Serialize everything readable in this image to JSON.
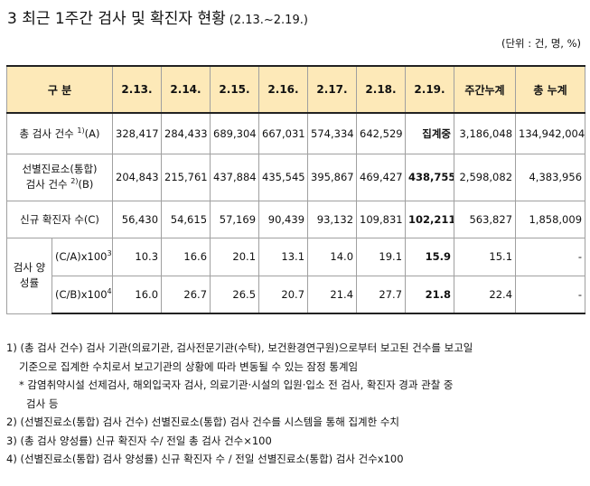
{
  "title": {
    "main": "3 최근 1주간 검사 및 확진자 현황",
    "date": "(2.13.~2.19.)"
  },
  "unit": "(단위 : 건, 명, %)",
  "table": {
    "headers": [
      "구 분",
      "2.13.",
      "2.14.",
      "2.15.",
      "2.16.",
      "2.17.",
      "2.18.",
      "2.19.",
      "주간누계",
      "총 누계"
    ],
    "row_total": {
      "label": "총 검사 건수",
      "sup": "1)",
      "suffix": "(A)",
      "values": [
        "328,417",
        "284,433",
        "689,304",
        "667,031",
        "574,334",
        "642,529",
        "집계중",
        "3,186,048",
        "134,942,004"
      ]
    },
    "row_screening": {
      "label_line1": "선별진료소(통합)",
      "label_line2": "검사 건수",
      "sup": "2)",
      "suffix": "(B)",
      "values": [
        "204,843",
        "215,761",
        "437,884",
        "435,545",
        "395,867",
        "469,427",
        "438,755",
        "2,598,082",
        "4,383,956"
      ]
    },
    "row_new": {
      "label": "신규 확진자 수(C)",
      "values": [
        "56,430",
        "54,615",
        "57,169",
        "90,439",
        "93,132",
        "109,831",
        "102,211",
        "563,827",
        "1,858,009"
      ]
    },
    "positivity": {
      "label_line1": "검사 양",
      "label_line2": "성률",
      "row_ca": {
        "label": "(C/A)x100",
        "sup": "3)",
        "values": [
          "10.3",
          "16.6",
          "20.1",
          "13.1",
          "14.0",
          "19.1",
          "15.9",
          "15.1",
          "-"
        ]
      },
      "row_cb": {
        "label": "(C/B)x100",
        "sup": "4)",
        "values": [
          "16.0",
          "26.7",
          "26.5",
          "20.7",
          "21.4",
          "27.7",
          "21.8",
          "22.4",
          "-"
        ]
      }
    }
  },
  "notes": [
    "1) (총 검사 건수) 검사 기관(의료기관, 검사전문기관(수탁), 보건환경연구원)으로부터 보고된 건수를 보고일",
    "기준으로 집계한 수치로서 보고기관의 상황에 따라 변동될 수 있는 잠정 통계임",
    "* 감염취약시설 선제검사, 해외입국자 검사, 의료기관·시설의 입원·입소 전 검사, 확진자 경과 관찰 중",
    "검사 등",
    "2) (선별진료소(통합) 검사 건수) 선별진료소(통합) 검사 건수를 시스템을 통해 집계한 수치",
    "3) (총 검사 양성률) 신규 확진자 수/ 전일 총 검사 건수×100",
    "4) (선별진료소(통합) 검사 양성률) 신규 확진자 수 / 전일 선별진료소(통합) 검사 건수x100"
  ]
}
